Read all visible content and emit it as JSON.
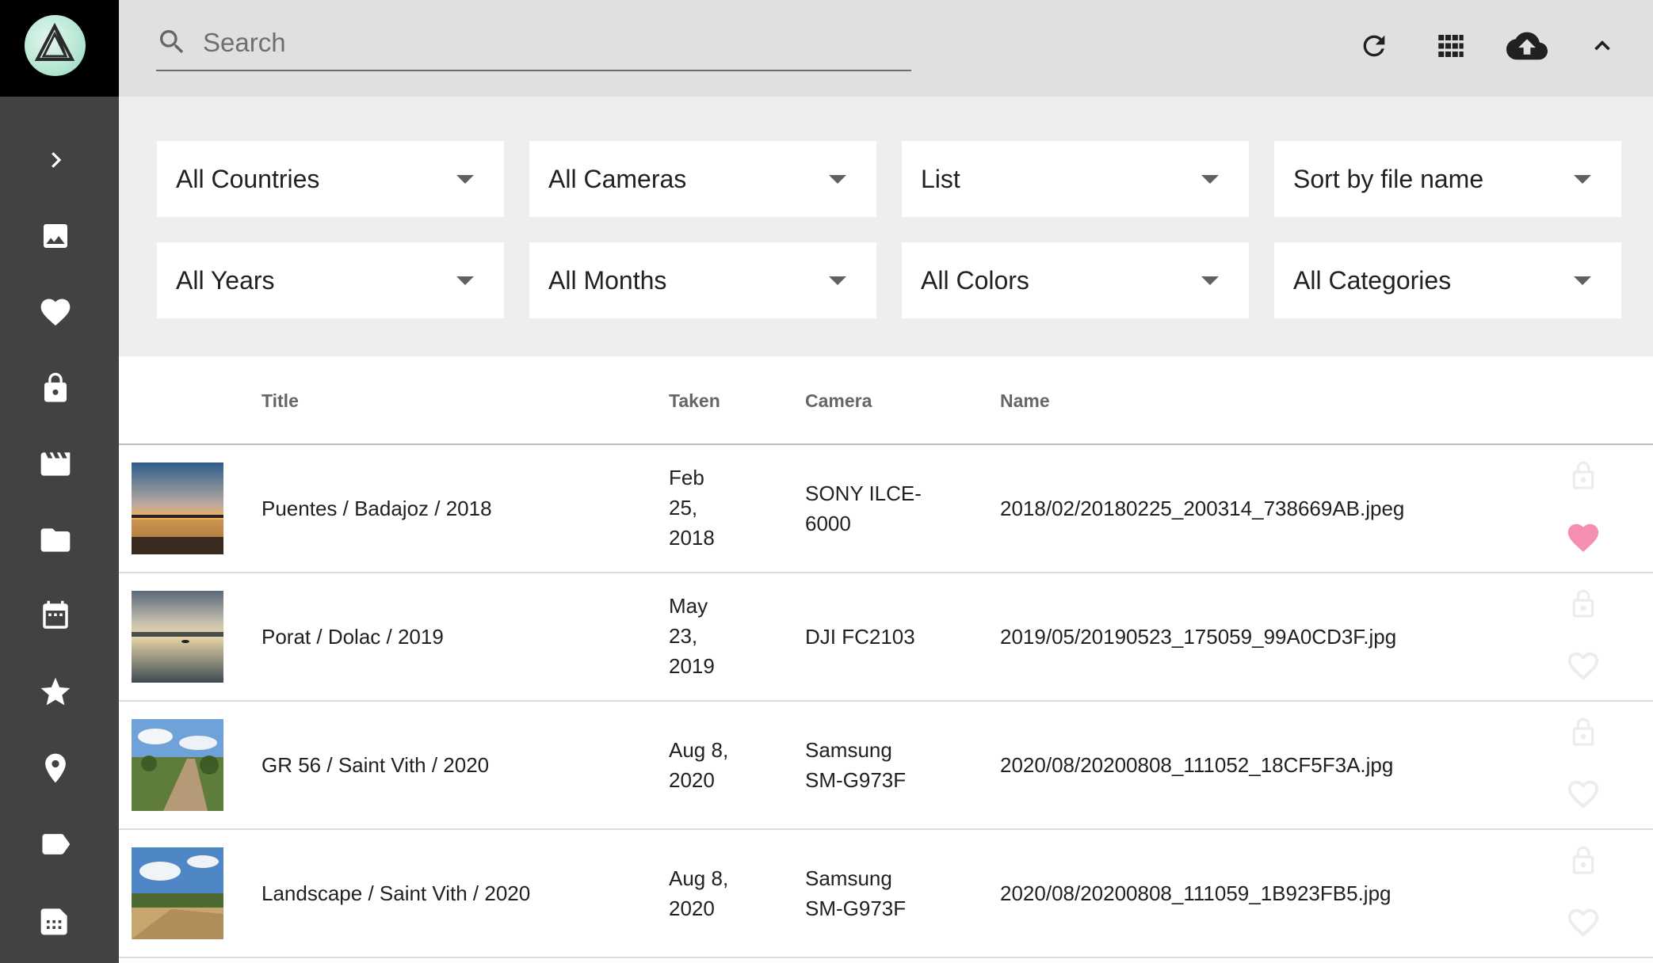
{
  "search": {
    "placeholder": "Search",
    "value": ""
  },
  "toolbar": {
    "refresh_icon": "refresh-icon",
    "view_icon": "grid-view-icon",
    "upload_icon": "cloud-upload-icon",
    "collapse_icon": "chevron-up-icon"
  },
  "sidebar": {
    "items": [
      {
        "name": "expand",
        "icon": "chevron-right-icon"
      },
      {
        "name": "photos",
        "icon": "image-icon"
      },
      {
        "name": "favorites",
        "icon": "heart-icon"
      },
      {
        "name": "private",
        "icon": "lock-icon"
      },
      {
        "name": "videos",
        "icon": "movie-icon"
      },
      {
        "name": "folders",
        "icon": "folder-icon"
      },
      {
        "name": "calendar",
        "icon": "calendar-icon"
      },
      {
        "name": "moments",
        "icon": "star-icon"
      },
      {
        "name": "places",
        "icon": "place-icon"
      },
      {
        "name": "labels",
        "icon": "label-icon"
      },
      {
        "name": "library",
        "icon": "library-icon"
      }
    ]
  },
  "filters": {
    "countries": "All Countries",
    "cameras": "All Cameras",
    "view": "List",
    "sort": "Sort by file name",
    "years": "All Years",
    "months": "All Months",
    "colors": "All Colors",
    "categories": "All Categories"
  },
  "table": {
    "headers": {
      "title": "Title",
      "taken": "Taken",
      "camera": "Camera",
      "name": "Name"
    },
    "rows": [
      {
        "title": "Puentes / Badajoz / 2018",
        "taken": [
          "Feb",
          "25,",
          "2018"
        ],
        "camera": [
          "SONY ILCE-",
          "6000"
        ],
        "name": "2018/02/20180225_200314_738669AB.jpeg",
        "favorite": true,
        "private": false
      },
      {
        "title": "Porat / Dolac / 2019",
        "taken": [
          "May",
          "23,",
          "2019"
        ],
        "camera": [
          "DJI FC2103"
        ],
        "name": "2019/05/20190523_175059_99A0CD3F.jpg",
        "favorite": false,
        "private": false
      },
      {
        "title": "GR 56 / Saint Vith / 2020",
        "taken": [
          "Aug 8,",
          "2020"
        ],
        "camera": [
          "Samsung",
          "SM-G973F"
        ],
        "name": "2020/08/20200808_111052_18CF5F3A.jpg",
        "favorite": false,
        "private": false
      },
      {
        "title": "Landscape / Saint Vith / 2020",
        "taken": [
          "Aug 8,",
          "2020"
        ],
        "camera": [
          "Samsung",
          "SM-G973F"
        ],
        "name": "2020/08/20200808_111059_1B923FB5.jpg",
        "favorite": false,
        "private": false
      }
    ]
  },
  "colors": {
    "sidebar": "#424242",
    "topbar": "#e0e0e0",
    "filters_bg": "#eeeeee",
    "favorite": "#f48fb1"
  }
}
